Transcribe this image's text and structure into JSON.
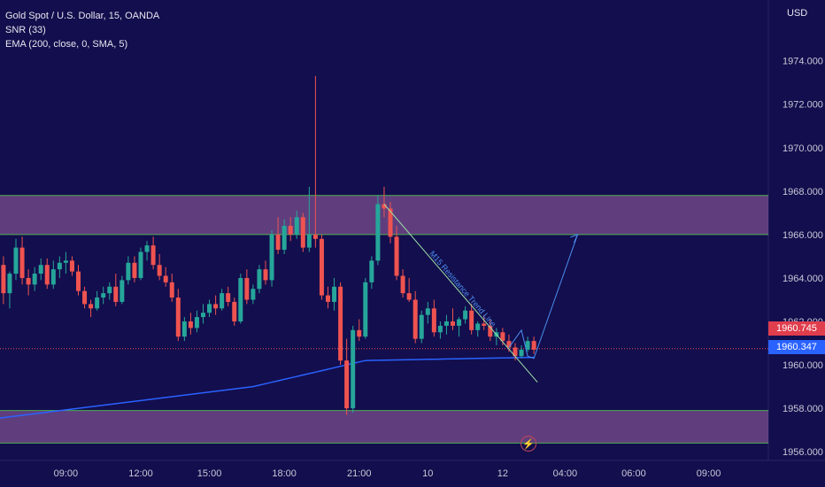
{
  "legend": {
    "symbol": "Gold Spot / U.S. Dollar, 15, OANDA",
    "indicator1": "SNR (33)",
    "indicator2": "EMA (200, close, 0, SMA, 5)"
  },
  "axis": {
    "currency": "USD"
  },
  "price_tags": {
    "last": "1960.745",
    "ema": "1960.347"
  },
  "icons": {
    "event": "lightning-bolt-icon"
  },
  "colors": {
    "background": "#130e4d",
    "up": "#26a69a",
    "down": "#ef5350",
    "zone_fill": "#7b4f8e",
    "zone_border": "#4caf50",
    "ema": "#2962ff",
    "annotation": "#4a8ef0"
  },
  "chart_data": {
    "type": "candlestick",
    "title": "Gold Spot / U.S. Dollar, 15, OANDA",
    "y_ticks": [
      "1956.000",
      "1958.000",
      "1960.000",
      "1962.000",
      "1964.000",
      "1966.000",
      "1968.000",
      "1970.000",
      "1972.000",
      "1974.000"
    ],
    "ylim": [
      1955.6,
      1976.8
    ],
    "x_ticks": [
      "09:00",
      "12:00",
      "15:00",
      "18:00",
      "21:00",
      "10",
      "12",
      "04:00",
      "06:00",
      "09:00"
    ],
    "x_tick_index": [
      10,
      22,
      33,
      45,
      57,
      68,
      80,
      90,
      101,
      113
    ],
    "zones": [
      {
        "low": 1966.0,
        "high": 1967.8
      },
      {
        "low": 1956.4,
        "high": 1957.9
      }
    ],
    "last_price": 1960.745,
    "ema_value": 1960.347,
    "annotation": "M15 Resistance Trend Line",
    "candles": [
      [
        1964.6,
        1965.0,
        1962.8,
        1963.3
      ],
      [
        1963.3,
        1964.3,
        1962.6,
        1964.2
      ],
      [
        1964.2,
        1965.8,
        1963.9,
        1965.4
      ],
      [
        1965.4,
        1965.9,
        1963.7,
        1964.0
      ],
      [
        1964.0,
        1964.4,
        1963.2,
        1963.7
      ],
      [
        1963.7,
        1964.5,
        1963.4,
        1964.2
      ],
      [
        1964.2,
        1964.9,
        1963.9,
        1964.6
      ],
      [
        1964.6,
        1964.9,
        1963.5,
        1963.7
      ],
      [
        1963.7,
        1964.8,
        1963.5,
        1964.4
      ],
      [
        1964.4,
        1965.0,
        1964.0,
        1964.7
      ],
      [
        1964.7,
        1965.2,
        1964.2,
        1964.8
      ],
      [
        1964.8,
        1965.0,
        1964.1,
        1964.3
      ],
      [
        1964.3,
        1964.6,
        1963.2,
        1963.4
      ],
      [
        1963.4,
        1963.6,
        1962.6,
        1962.8
      ],
      [
        1962.8,
        1963.0,
        1962.2,
        1962.6
      ],
      [
        1962.6,
        1963.4,
        1962.5,
        1963.1
      ],
      [
        1963.1,
        1963.6,
        1962.8,
        1963.3
      ],
      [
        1963.3,
        1963.8,
        1963.0,
        1963.6
      ],
      [
        1963.6,
        1964.2,
        1962.7,
        1962.9
      ],
      [
        1962.9,
        1964.1,
        1962.8,
        1963.9
      ],
      [
        1963.9,
        1965.0,
        1963.7,
        1964.7
      ],
      [
        1964.7,
        1965.0,
        1963.8,
        1964.0
      ],
      [
        1964.0,
        1965.4,
        1963.9,
        1965.2
      ],
      [
        1965.2,
        1965.7,
        1964.8,
        1965.5
      ],
      [
        1965.5,
        1965.9,
        1964.4,
        1964.6
      ],
      [
        1964.6,
        1965.1,
        1963.9,
        1964.1
      ],
      [
        1964.1,
        1964.5,
        1963.6,
        1963.8
      ],
      [
        1963.8,
        1964.2,
        1962.9,
        1963.1
      ],
      [
        1963.1,
        1963.5,
        1961.1,
        1961.3
      ],
      [
        1961.3,
        1962.2,
        1961.1,
        1962.0
      ],
      [
        1962.0,
        1962.4,
        1961.4,
        1961.7
      ],
      [
        1961.7,
        1962.5,
        1961.5,
        1962.2
      ],
      [
        1962.2,
        1962.8,
        1961.9,
        1962.4
      ],
      [
        1962.4,
        1963.0,
        1962.2,
        1962.8
      ],
      [
        1962.8,
        1963.2,
        1962.3,
        1962.6
      ],
      [
        1962.6,
        1963.5,
        1962.5,
        1963.3
      ],
      [
        1963.3,
        1963.6,
        1962.7,
        1962.9
      ],
      [
        1962.9,
        1963.1,
        1961.8,
        1962.0
      ],
      [
        1962.0,
        1964.2,
        1961.9,
        1964.0
      ],
      [
        1964.0,
        1964.4,
        1962.8,
        1963.0
      ],
      [
        1963.0,
        1963.7,
        1962.8,
        1963.5
      ],
      [
        1963.5,
        1964.6,
        1963.3,
        1964.4
      ],
      [
        1964.4,
        1964.8,
        1963.7,
        1963.9
      ],
      [
        1963.9,
        1966.2,
        1963.6,
        1966.0
      ],
      [
        1966.0,
        1966.8,
        1965.1,
        1965.3
      ],
      [
        1965.3,
        1966.7,
        1965.1,
        1966.4
      ],
      [
        1966.4,
        1966.8,
        1965.7,
        1966.0
      ],
      [
        1966.0,
        1967.1,
        1965.8,
        1966.8
      ],
      [
        1966.8,
        1967.0,
        1965.2,
        1965.4
      ],
      [
        1965.4,
        1968.2,
        1965.2,
        1966.0
      ],
      [
        1966.0,
        1973.3,
        1965.4,
        1965.8
      ],
      [
        1965.8,
        1966.0,
        1963.0,
        1963.2
      ],
      [
        1963.2,
        1963.6,
        1962.6,
        1962.9
      ],
      [
        1962.9,
        1964.0,
        1962.5,
        1963.6
      ],
      [
        1963.6,
        1963.8,
        1960.0,
        1960.2
      ],
      [
        1960.2,
        1961.2,
        1957.7,
        1958.0
      ],
      [
        1958.0,
        1961.8,
        1957.8,
        1961.6
      ],
      [
        1961.6,
        1962.1,
        1961.1,
        1961.3
      ],
      [
        1961.3,
        1964.0,
        1961.2,
        1963.8
      ],
      [
        1963.8,
        1965.0,
        1963.5,
        1964.8
      ],
      [
        1964.8,
        1967.8,
        1964.6,
        1967.4
      ],
      [
        1967.4,
        1968.2,
        1966.8,
        1967.2
      ],
      [
        1967.2,
        1967.5,
        1965.6,
        1965.9
      ],
      [
        1965.9,
        1966.4,
        1963.9,
        1964.1
      ],
      [
        1964.1,
        1964.4,
        1963.1,
        1963.3
      ],
      [
        1963.3,
        1964.0,
        1962.9,
        1963.0
      ],
      [
        1963.0,
        1963.4,
        1961.0,
        1961.2
      ],
      [
        1961.2,
        1962.5,
        1961.0,
        1962.3
      ],
      [
        1962.3,
        1962.9,
        1961.9,
        1962.6
      ],
      [
        1962.6,
        1963.0,
        1961.3,
        1961.5
      ],
      [
        1961.5,
        1962.0,
        1961.2,
        1961.8
      ],
      [
        1961.8,
        1962.3,
        1961.4,
        1962.0
      ],
      [
        1962.0,
        1962.6,
        1961.6,
        1961.8
      ],
      [
        1961.8,
        1962.2,
        1961.3,
        1962.1
      ],
      [
        1962.1,
        1962.7,
        1961.9,
        1962.5
      ],
      [
        1962.5,
        1962.8,
        1961.4,
        1961.6
      ],
      [
        1961.6,
        1962.0,
        1961.3,
        1961.9
      ],
      [
        1961.9,
        1962.3,
        1961.6,
        1961.8
      ],
      [
        1961.8,
        1962.1,
        1961.1,
        1961.3
      ],
      [
        1961.3,
        1961.7,
        1960.9,
        1961.5
      ],
      [
        1961.5,
        1961.7,
        1960.9,
        1961.1
      ],
      [
        1961.1,
        1961.4,
        1960.6,
        1960.8
      ],
      [
        1960.8,
        1961.0,
        1960.2,
        1960.4
      ],
      [
        1960.4,
        1960.9,
        1960.3,
        1960.7
      ],
      [
        1960.7,
        1961.3,
        1960.6,
        1961.1
      ],
      [
        1961.1,
        1961.3,
        1960.5,
        1960.7
      ]
    ]
  }
}
